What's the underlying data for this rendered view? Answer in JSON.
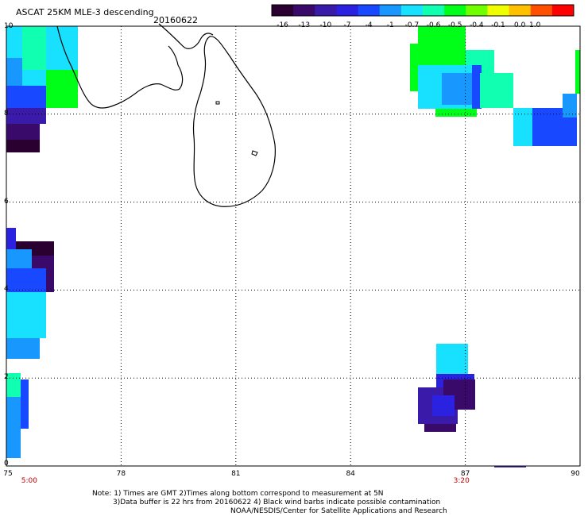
{
  "header": {
    "title": "ASCAT 25KM MLE-3 descending",
    "date": "20160622"
  },
  "colorbar": {
    "labels": [
      "-16",
      "-13",
      "-10",
      "-7",
      "-4",
      "-1",
      "-0.7",
      "-0.6",
      "-0.5",
      "-0.4",
      "-0.1",
      "0.0",
      "1.0"
    ],
    "colors": [
      "#2a0030",
      "#3a0a6a",
      "#3a1aa8",
      "#2a22e0",
      "#1848ff",
      "#1898ff",
      "#18e0ff",
      "#10ffb0",
      "#00ff18",
      "#70ff00",
      "#f0ff00",
      "#ffc000",
      "#ff5000",
      "#ff0000"
    ]
  },
  "map": {
    "x_ticks": [
      "75",
      "78",
      "81",
      "84",
      "87",
      "90"
    ],
    "y_ticks": [
      "0",
      "2",
      "4",
      "6",
      "8",
      "10"
    ],
    "x_range": [
      75,
      90
    ],
    "y_range": [
      0,
      10
    ],
    "time_labels": [
      {
        "text": "5:00",
        "lon": 75.6
      },
      {
        "text": "3:20",
        "lon": 86.9
      }
    ]
  },
  "footer": {
    "line1": "Note: 1) Times are GMT 2)Times along bottom correspond to measurement at 5N",
    "line2": "3)Data buffer is 22 hrs from 20160622 4) Black wind barbs indicate possible contamination",
    "line3": "NOAA/NESDIS/Center for Satellite Applications and Research"
  }
}
